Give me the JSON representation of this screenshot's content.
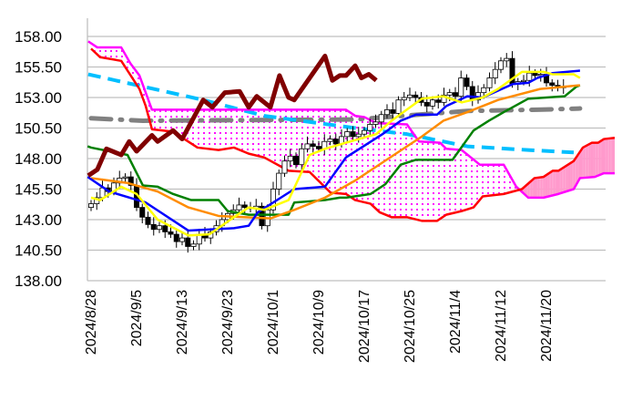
{
  "chart_data": {
    "type": "candlestick-ichimoku",
    "title": "",
    "xlabel": "",
    "ylabel": "",
    "ylim": [
      138,
      158
    ],
    "grid": true,
    "yticks": [
      "158.00",
      "155.50",
      "153.00",
      "150.50",
      "148.00",
      "145.50",
      "143.00",
      "140.50",
      "138.00"
    ],
    "ytick_values": [
      158,
      155.5,
      153,
      150.5,
      148,
      145.5,
      143,
      140.5,
      138
    ],
    "xticks": [
      "2024/8/28",
      "2024/9/5",
      "2024/9/13",
      "2024/9/23",
      "2024/10/1",
      "2024/10/9",
      "2024/10/17",
      "2024/10/25",
      "2024/11/4",
      "2024/11/12",
      "2024/11/20"
    ],
    "xtick_index": [
      0,
      8,
      16,
      24,
      32,
      40,
      48,
      56,
      64,
      72,
      80
    ],
    "closes": [
      144.3,
      144.8,
      145.6,
      145.3,
      146.0,
      146.4,
      146.5,
      145.8,
      144.0,
      143.2,
      142.6,
      142.2,
      142.5,
      142.0,
      141.8,
      141.2,
      141.5,
      140.8,
      141.0,
      141.8,
      141.5,
      142.0,
      142.5,
      143.0,
      143.5,
      143.8,
      144.2,
      144.0,
      143.9,
      144.1,
      142.5,
      143.8,
      145.5,
      146.8,
      147.8,
      148.2,
      147.5,
      148.8,
      149.2,
      149.0,
      148.8,
      149.4,
      149.6,
      149.2,
      149.8,
      150.2,
      149.8,
      150.0,
      150.3,
      150.8,
      151.0,
      151.6,
      152.0,
      151.7,
      152.8,
      153.0,
      153.2,
      153.0,
      152.6,
      152.3,
      152.8,
      152.6,
      153.2,
      153.4,
      153.1,
      154.6,
      153.9,
      152.8,
      153.4,
      153.8,
      154.6,
      155.3,
      156.0,
      156.2,
      154.1,
      154.3,
      154.4,
      155.0,
      154.8,
      154.9,
      154.2,
      154.0,
      153.8,
      153.9
    ],
    "first_open": 144.0,
    "series": [
      {
        "name": "tenkan",
        "color": "#0000ff",
        "points": [
          [
            -0.6,
            146.5
          ],
          [
            3.2,
            145.3
          ],
          [
            9.6,
            144.4
          ],
          [
            17.1,
            142.1
          ],
          [
            25.1,
            142.3
          ],
          [
            27.7,
            142.5
          ],
          [
            29.3,
            143.6
          ],
          [
            35.7,
            145.5
          ],
          [
            41.1,
            145.7
          ],
          [
            44.8,
            148.1
          ],
          [
            47.5,
            148.9
          ],
          [
            51.2,
            150
          ],
          [
            54.4,
            151.1
          ],
          [
            57.1,
            151.6
          ],
          [
            60.8,
            151.6
          ],
          [
            62.4,
            152.3
          ],
          [
            66.1,
            153.1
          ],
          [
            68.8,
            153
          ],
          [
            74.1,
            154.1
          ],
          [
            76.8,
            154.2
          ],
          [
            78.4,
            154.6
          ],
          [
            81.1,
            155
          ],
          [
            85.9,
            155.2
          ]
        ]
      },
      {
        "name": "kijun",
        "color": "#008000",
        "points": [
          [
            -0.6,
            149
          ],
          [
            0,
            148.9
          ],
          [
            6.4,
            148.3
          ],
          [
            9.1,
            145.8
          ],
          [
            11.7,
            145.7
          ],
          [
            14.4,
            145.1
          ],
          [
            17.6,
            144.6
          ],
          [
            22.4,
            144.6
          ],
          [
            24,
            143.7
          ],
          [
            27.7,
            143.4
          ],
          [
            34.7,
            143.4
          ],
          [
            35.7,
            144.4
          ],
          [
            41.1,
            144.6
          ],
          [
            43.7,
            144.8
          ],
          [
            44.8,
            144.8
          ],
          [
            49.1,
            145.1
          ],
          [
            51.7,
            145.9
          ],
          [
            54.4,
            147.5
          ],
          [
            57.1,
            147.9
          ],
          [
            63.5,
            147.9
          ],
          [
            67.2,
            150.3
          ],
          [
            69.9,
            151.1
          ],
          [
            72.5,
            151.8
          ],
          [
            76.8,
            152.9
          ],
          [
            83.2,
            153.1
          ],
          [
            85.3,
            153.9
          ],
          [
            85.9,
            154
          ]
        ]
      },
      {
        "name": "ma-orange",
        "color": "#ff8c00",
        "points": [
          [
            0,
            146.4
          ],
          [
            6.4,
            146
          ],
          [
            11.7,
            145.3
          ],
          [
            17.1,
            144
          ],
          [
            22.4,
            143.3
          ],
          [
            31.5,
            143.1
          ],
          [
            35.7,
            143.8
          ],
          [
            41.1,
            144.8
          ],
          [
            46.4,
            146.2
          ],
          [
            58.1,
            149.8
          ],
          [
            61.9,
            151.1
          ],
          [
            66.1,
            151.8
          ],
          [
            71.5,
            152.8
          ],
          [
            78.9,
            153.7
          ],
          [
            85.9,
            154
          ]
        ]
      },
      {
        "name": "ma-yellow",
        "color": "#ffff00",
        "points": [
          [
            0,
            144.8
          ],
          [
            1.6,
            144.6
          ],
          [
            5.3,
            145.7
          ],
          [
            8,
            145.1
          ],
          [
            11.7,
            143
          ],
          [
            17.1,
            141.7
          ],
          [
            20.8,
            141.8
          ],
          [
            25.1,
            143.2
          ],
          [
            27.7,
            144
          ],
          [
            30.4,
            143.8
          ],
          [
            34.7,
            144.6
          ],
          [
            38.4,
            148.3
          ],
          [
            41.1,
            148.8
          ],
          [
            44.8,
            149.3
          ],
          [
            50.1,
            150
          ],
          [
            52.8,
            151.1
          ],
          [
            58.1,
            152.9
          ],
          [
            61.9,
            153.1
          ],
          [
            65.1,
            152.6
          ],
          [
            68.8,
            153
          ],
          [
            71.5,
            153.7
          ],
          [
            75.7,
            155.1
          ],
          [
            79.5,
            155.1
          ],
          [
            81.1,
            154.9
          ],
          [
            84.8,
            154.9
          ],
          [
            85.9,
            154.6
          ]
        ]
      },
      {
        "name": "chikou",
        "color": "#800000",
        "points": [
          [
            -0.5,
            146.6
          ],
          [
            1.1,
            147.1
          ],
          [
            2.7,
            148.8
          ],
          [
            5.3,
            148.3
          ],
          [
            6.7,
            149.4
          ],
          [
            8,
            148.6
          ],
          [
            10.7,
            149.9
          ],
          [
            11.7,
            149.4
          ],
          [
            14.4,
            150.3
          ],
          [
            16,
            149.6
          ],
          [
            19.7,
            152.8
          ],
          [
            21.3,
            152.2
          ],
          [
            23.5,
            153.4
          ],
          [
            26.1,
            153.5
          ],
          [
            27.7,
            152.2
          ],
          [
            29.1,
            153.1
          ],
          [
            31.5,
            152.2
          ],
          [
            33.1,
            154.8
          ],
          [
            34.7,
            153
          ],
          [
            35.7,
            152.8
          ],
          [
            41.1,
            156.4
          ],
          [
            42.4,
            154.4
          ],
          [
            43.7,
            154.8
          ],
          [
            44.8,
            154.8
          ],
          [
            46.4,
            155.6
          ],
          [
            47.5,
            154.6
          ],
          [
            48.8,
            154.9
          ],
          [
            50.1,
            154.4
          ]
        ]
      },
      {
        "name": "senkou-a",
        "color": "#ff00ff",
        "points": [
          [
            -0.5,
            157.6
          ],
          [
            1.1,
            157.1
          ],
          [
            5.3,
            157.1
          ],
          [
            6.9,
            155.8
          ],
          [
            8.5,
            154.8
          ],
          [
            10.7,
            152
          ],
          [
            44.8,
            152
          ],
          [
            46.4,
            151.5
          ],
          [
            48,
            151.4
          ],
          [
            50.1,
            150.9
          ],
          [
            55.5,
            150.8
          ],
          [
            57.6,
            149.4
          ],
          [
            61.3,
            149.3
          ],
          [
            62.4,
            148.8
          ],
          [
            65.1,
            148.7
          ],
          [
            68.3,
            147.5
          ],
          [
            72.5,
            147.5
          ],
          [
            74.7,
            145.7
          ],
          [
            76.8,
            144.8
          ],
          [
            79.5,
            144.8
          ],
          [
            82.1,
            145.1
          ],
          [
            84.8,
            145.5
          ],
          [
            85.9,
            146.4
          ],
          [
            88.5,
            146.5
          ],
          [
            90.1,
            146.8
          ],
          [
            92,
            146.8
          ]
        ]
      },
      {
        "name": "senkou-b",
        "color": "#ff0000",
        "points": [
          [
            0,
            157
          ],
          [
            1.6,
            156.3
          ],
          [
            5.3,
            156
          ],
          [
            8.5,
            153.7
          ],
          [
            9.6,
            152.3
          ],
          [
            10.7,
            150.4
          ],
          [
            14.4,
            150.2
          ],
          [
            18.7,
            148.9
          ],
          [
            22.4,
            148.7
          ],
          [
            25.1,
            148.9
          ],
          [
            27.7,
            148.4
          ],
          [
            30.4,
            148.1
          ],
          [
            34.7,
            147
          ],
          [
            38.4,
            146.9
          ],
          [
            42.1,
            145.2
          ],
          [
            44.8,
            145.1
          ],
          [
            46.4,
            144.6
          ],
          [
            49.1,
            144.3
          ],
          [
            50.7,
            143.6
          ],
          [
            52.8,
            143.2
          ],
          [
            55.5,
            143.2
          ],
          [
            58.1,
            142.9
          ],
          [
            60.8,
            142.9
          ],
          [
            62.4,
            143.4
          ],
          [
            65.1,
            143.7
          ],
          [
            67.2,
            144
          ],
          [
            68.8,
            144.9
          ],
          [
            72.5,
            145.1
          ],
          [
            75.7,
            145.5
          ],
          [
            77.9,
            146.4
          ],
          [
            79.5,
            146.5
          ],
          [
            81.1,
            147
          ],
          [
            82.1,
            147
          ],
          [
            84.8,
            147.8
          ],
          [
            86.4,
            148.9
          ],
          [
            88,
            149.3
          ],
          [
            89.1,
            149.3
          ],
          [
            90.1,
            149.6
          ],
          [
            92,
            149.7
          ]
        ]
      },
      {
        "name": "ma-cyan",
        "color": "#00bfff",
        "points": [
          [
            -0.5,
            154.9
          ],
          [
            9.1,
            153.9
          ],
          [
            19.7,
            152.8
          ],
          [
            30.4,
            151.5
          ],
          [
            46.4,
            150.5
          ],
          [
            55.5,
            150
          ],
          [
            66.1,
            149
          ],
          [
            76.8,
            148.7
          ],
          [
            84.8,
            148.5
          ]
        ]
      },
      {
        "name": "ma-gray",
        "color": "#808080",
        "points": [
          [
            0,
            151.3
          ],
          [
            9.1,
            151.1
          ],
          [
            46.4,
            151.2
          ],
          [
            66.1,
            151.9
          ],
          [
            78.4,
            152
          ],
          [
            85.9,
            152.1
          ]
        ]
      }
    ],
    "cloud": {
      "bearish_fill": "#ff00ff",
      "bullish_fill": "#ff99cc"
    }
  }
}
